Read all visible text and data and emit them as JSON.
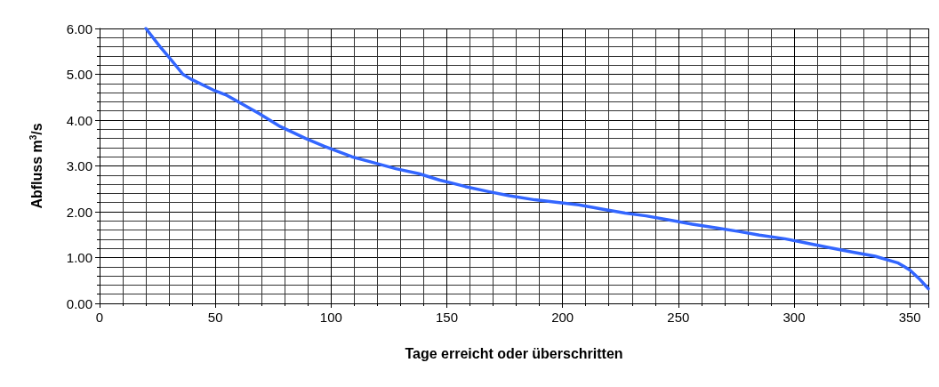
{
  "chart_data": {
    "type": "line",
    "xlabel": "Tage erreicht oder überschritten",
    "ylabel": "Abfluss m$^{3}$/s",
    "xlim": [
      0,
      358
    ],
    "xticks": [
      0,
      50,
      100,
      150,
      200,
      250,
      300,
      350
    ],
    "ylim": [
      0,
      6
    ],
    "yticks": [
      {
        "value": 0,
        "label": "0.00"
      },
      {
        "value": 1,
        "label": "1.00"
      },
      {
        "value": 2,
        "label": "2.00"
      },
      {
        "value": 3,
        "label": "3.00"
      },
      {
        "value": 4,
        "label": "4.00"
      },
      {
        "value": 5,
        "label": "5.00"
      },
      {
        "value": 6,
        "label": "6.00"
      }
    ],
    "grid": true,
    "marker": "none",
    "line_style": "solid",
    "series": [
      {
        "color": "#3366ff",
        "x": [
          20,
          26,
          30,
          36,
          40,
          49,
          55,
          69,
          78,
          89,
          97,
          109,
          117,
          128,
          138,
          147,
          158,
          168,
          177,
          188,
          197,
          207,
          217,
          227,
          236,
          246,
          256,
          266,
          276,
          285,
          296,
          305,
          315,
          325,
          335,
          345,
          350,
          354,
          358
        ],
        "values": [
          6.0,
          5.61,
          5.37,
          5.0,
          4.88,
          4.66,
          4.54,
          4.14,
          3.86,
          3.6,
          3.43,
          3.2,
          3.09,
          2.94,
          2.83,
          2.69,
          2.55,
          2.44,
          2.35,
          2.26,
          2.21,
          2.15,
          2.06,
          1.97,
          1.91,
          1.82,
          1.73,
          1.65,
          1.57,
          1.49,
          1.41,
          1.32,
          1.22,
          1.12,
          1.03,
          0.88,
          0.73,
          0.54,
          0.32
        ]
      }
    ]
  }
}
